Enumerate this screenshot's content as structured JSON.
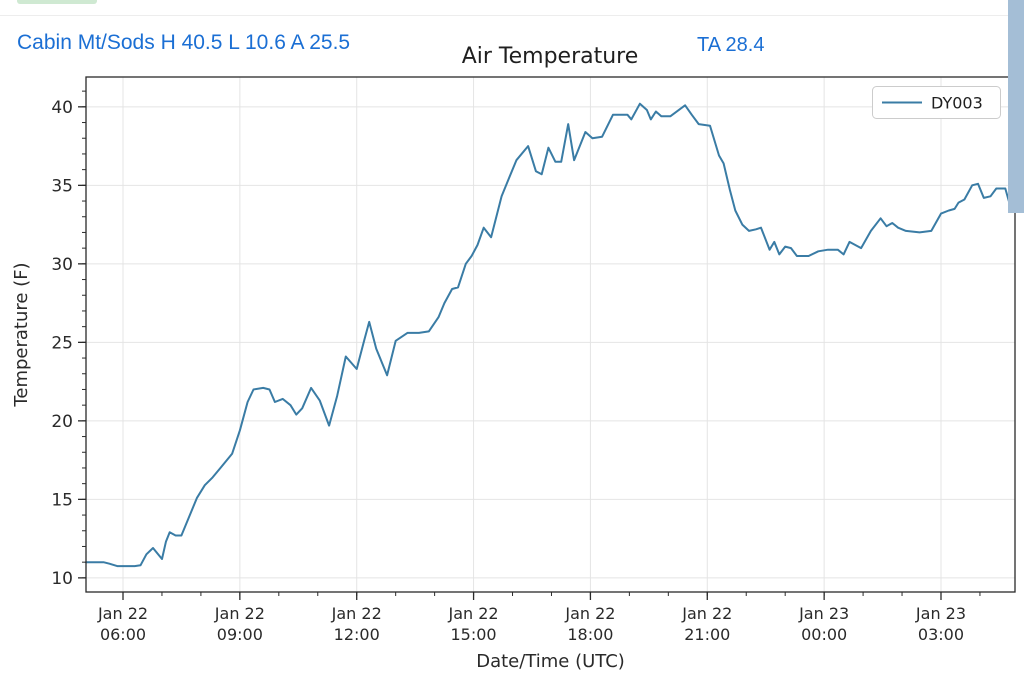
{
  "header": {
    "station_summary": "Cabin Mt/Sods H 40.5 L 10.6 A 25.5",
    "ta_value": "TA 28.4",
    "accent_blue": "#1b6fd4",
    "tab_indicator_green": "#cfe9d2"
  },
  "ui": {
    "scrollbar_color": "#a4bed6",
    "divider_color": "#ededed"
  },
  "chart_data": {
    "type": "line",
    "title": "Air Temperature",
    "xlabel": "Date/Time (UTC)",
    "ylabel": "Temperature (F)",
    "ylim": [
      9.1,
      41.9
    ],
    "xlim_hours": [
      5.05,
      28.9
    ],
    "grid": true,
    "grid_color": "#e4e4e4",
    "axis_color": "#2a2a2a",
    "yticks": [
      10,
      15,
      20,
      25,
      30,
      35,
      40
    ],
    "xticks": [
      {
        "hour": 6,
        "date": "Jan 22",
        "time": "06:00"
      },
      {
        "hour": 9,
        "date": "Jan 22",
        "time": "09:00"
      },
      {
        "hour": 12,
        "date": "Jan 22",
        "time": "12:00"
      },
      {
        "hour": 15,
        "date": "Jan 22",
        "time": "15:00"
      },
      {
        "hour": 18,
        "date": "Jan 22",
        "time": "18:00"
      },
      {
        "hour": 21,
        "date": "Jan 22",
        "time": "21:00"
      },
      {
        "hour": 24,
        "date": "Jan 23",
        "time": "00:00"
      },
      {
        "hour": 27,
        "date": "Jan 23",
        "time": "03:00"
      }
    ],
    "legend": {
      "position": "upper right",
      "entries": [
        {
          "label": "DY003",
          "color": "#3a7ca5"
        }
      ]
    },
    "series": [
      {
        "name": "DY003",
        "color": "#3a7ca5",
        "points": [
          [
            5.05,
            11.0
          ],
          [
            5.3,
            11.0
          ],
          [
            5.5,
            11.0
          ],
          [
            5.65,
            10.9
          ],
          [
            5.85,
            10.75
          ],
          [
            6.1,
            10.75
          ],
          [
            6.3,
            10.75
          ],
          [
            6.45,
            10.8
          ],
          [
            6.6,
            11.5
          ],
          [
            6.77,
            11.9
          ],
          [
            6.9,
            11.5
          ],
          [
            7.0,
            11.2
          ],
          [
            7.1,
            12.3
          ],
          [
            7.2,
            12.9
          ],
          [
            7.35,
            12.7
          ],
          [
            7.5,
            12.7
          ],
          [
            7.7,
            13.9
          ],
          [
            7.9,
            15.1
          ],
          [
            8.1,
            15.9
          ],
          [
            8.3,
            16.4
          ],
          [
            8.5,
            17.0
          ],
          [
            8.8,
            17.9
          ],
          [
            9.0,
            19.4
          ],
          [
            9.2,
            21.2
          ],
          [
            9.35,
            22.0
          ],
          [
            9.6,
            22.1
          ],
          [
            9.76,
            22.0
          ],
          [
            9.9,
            21.2
          ],
          [
            10.1,
            21.4
          ],
          [
            10.3,
            21.0
          ],
          [
            10.45,
            20.4
          ],
          [
            10.6,
            20.8
          ],
          [
            10.83,
            22.1
          ],
          [
            11.05,
            21.3
          ],
          [
            11.29,
            19.7
          ],
          [
            11.5,
            21.6
          ],
          [
            11.72,
            24.1
          ],
          [
            12.0,
            23.3
          ],
          [
            12.2,
            25.2
          ],
          [
            12.32,
            26.3
          ],
          [
            12.5,
            24.6
          ],
          [
            12.78,
            22.9
          ],
          [
            13.0,
            25.1
          ],
          [
            13.3,
            25.6
          ],
          [
            13.6,
            25.6
          ],
          [
            13.85,
            25.7
          ],
          [
            14.1,
            26.6
          ],
          [
            14.25,
            27.5
          ],
          [
            14.45,
            28.4
          ],
          [
            14.6,
            28.5
          ],
          [
            14.8,
            30.0
          ],
          [
            14.95,
            30.5
          ],
          [
            15.1,
            31.2
          ],
          [
            15.26,
            32.3
          ],
          [
            15.45,
            31.7
          ],
          [
            15.72,
            34.3
          ],
          [
            15.9,
            35.4
          ],
          [
            16.1,
            36.6
          ],
          [
            16.4,
            37.5
          ],
          [
            16.6,
            35.9
          ],
          [
            16.75,
            35.7
          ],
          [
            16.92,
            37.4
          ],
          [
            17.1,
            36.5
          ],
          [
            17.25,
            36.5
          ],
          [
            17.43,
            38.9
          ],
          [
            17.58,
            36.6
          ],
          [
            17.87,
            38.4
          ],
          [
            18.05,
            38.0
          ],
          [
            18.3,
            38.1
          ],
          [
            18.58,
            39.5
          ],
          [
            18.95,
            39.5
          ],
          [
            19.05,
            39.2
          ],
          [
            19.27,
            40.2
          ],
          [
            19.45,
            39.8
          ],
          [
            19.55,
            39.2
          ],
          [
            19.68,
            39.7
          ],
          [
            19.82,
            39.4
          ],
          [
            20.05,
            39.4
          ],
          [
            20.43,
            40.1
          ],
          [
            20.6,
            39.5
          ],
          [
            20.78,
            38.9
          ],
          [
            21.07,
            38.8
          ],
          [
            21.3,
            36.9
          ],
          [
            21.42,
            36.4
          ],
          [
            21.58,
            34.7
          ],
          [
            21.72,
            33.4
          ],
          [
            21.9,
            32.5
          ],
          [
            22.07,
            32.1
          ],
          [
            22.25,
            32.2
          ],
          [
            22.38,
            32.3
          ],
          [
            22.6,
            30.9
          ],
          [
            22.72,
            31.4
          ],
          [
            22.85,
            30.6
          ],
          [
            23.0,
            31.1
          ],
          [
            23.15,
            31.0
          ],
          [
            23.3,
            30.5
          ],
          [
            23.6,
            30.5
          ],
          [
            23.85,
            30.8
          ],
          [
            24.1,
            30.9
          ],
          [
            24.35,
            30.9
          ],
          [
            24.5,
            30.6
          ],
          [
            24.65,
            31.4
          ],
          [
            24.95,
            31.0
          ],
          [
            25.2,
            32.1
          ],
          [
            25.45,
            32.9
          ],
          [
            25.6,
            32.4
          ],
          [
            25.75,
            32.6
          ],
          [
            25.9,
            32.3
          ],
          [
            26.1,
            32.1
          ],
          [
            26.45,
            32.0
          ],
          [
            26.75,
            32.1
          ],
          [
            27.0,
            33.2
          ],
          [
            27.2,
            33.4
          ],
          [
            27.35,
            33.5
          ],
          [
            27.45,
            33.9
          ],
          [
            27.6,
            34.1
          ],
          [
            27.8,
            35.0
          ],
          [
            27.95,
            35.1
          ],
          [
            28.1,
            34.2
          ],
          [
            28.27,
            34.3
          ],
          [
            28.42,
            34.8
          ],
          [
            28.65,
            34.8
          ],
          [
            28.81,
            33.4
          ]
        ]
      }
    ]
  }
}
